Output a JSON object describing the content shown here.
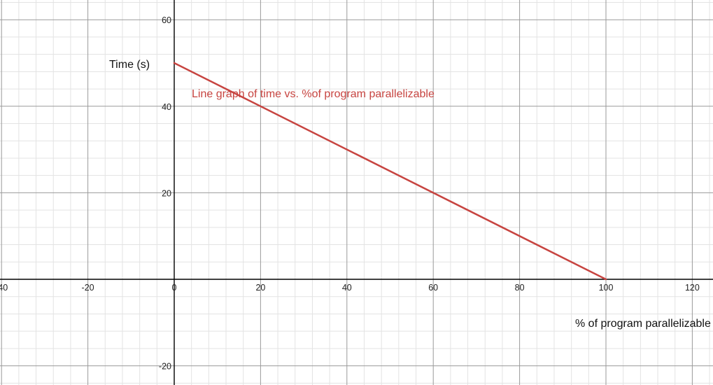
{
  "chart_data": {
    "type": "line",
    "title": "",
    "xlabel": "% of program parallelizable",
    "ylabel": "Time (s)",
    "xlim": [
      -40,
      125
    ],
    "ylim": [
      -24,
      64
    ],
    "grid": true,
    "x_ticks": [
      -40,
      -20,
      0,
      20,
      40,
      60,
      80,
      100,
      120
    ],
    "y_ticks": [
      -20,
      20,
      40,
      60
    ],
    "x_tick_labels": [
      "-40",
      "-20",
      "0",
      "20",
      "40",
      "60",
      "80",
      "100",
      "120"
    ],
    "y_tick_labels": [
      "-20",
      "20",
      "40",
      "60"
    ],
    "series": [
      {
        "color": "#c74440",
        "x": [
          0,
          100
        ],
        "y": [
          50,
          0
        ]
      }
    ],
    "annotation": {
      "text": "Line graph of time vs. %of program parallelizable",
      "color": "#c74440"
    }
  }
}
